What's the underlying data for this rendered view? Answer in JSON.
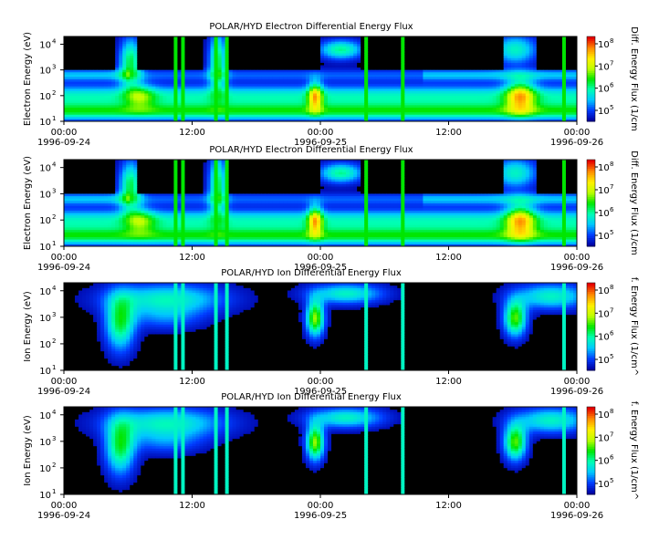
{
  "chart_data": [
    {
      "type": "heatmap",
      "title": "POLAR/HYD  Electron Differential Energy Flux",
      "ylabel": "Electron Energy (eV)",
      "yscale": "log",
      "ylim": [
        10,
        20000
      ],
      "yticks": [
        "10",
        "10",
        "10",
        "10"
      ],
      "ytick_exponents": [
        "1",
        "2",
        "3",
        "4"
      ],
      "xtick_times": [
        "00:00",
        "12:00",
        "00:00",
        "12:00",
        "00:00"
      ],
      "xtick_dates": [
        "1996-09-24",
        "",
        "1996-09-25",
        "",
        "1996-09-26"
      ],
      "colorbar_label": "Diff. Energy Flux (1/cm",
      "colorbar_ticks": [
        "10",
        "10",
        "10",
        "10"
      ],
      "colorbar_exponents": [
        "5",
        "6",
        "7",
        "8"
      ],
      "colorscale": "rainbow"
    },
    {
      "type": "heatmap",
      "title": "POLAR/HYD  Electron Differential Energy Flux",
      "ylabel": "Electron Energy (eV)",
      "yscale": "log",
      "ylim": [
        10,
        20000
      ],
      "yticks": [
        "10",
        "10",
        "10",
        "10"
      ],
      "ytick_exponents": [
        "1",
        "2",
        "3",
        "4"
      ],
      "xtick_times": [
        "00:00",
        "12:00",
        "00:00",
        "12:00",
        "00:00"
      ],
      "xtick_dates": [
        "1996-09-24",
        "",
        "1996-09-25",
        "",
        "1996-09-26"
      ],
      "colorbar_label": "Diff. Energy Flux (1/cm",
      "colorbar_ticks": [
        "10",
        "10",
        "10",
        "10"
      ],
      "colorbar_exponents": [
        "5",
        "6",
        "7",
        "8"
      ],
      "colorscale": "rainbow"
    },
    {
      "type": "heatmap",
      "title": "POLAR/HYD  Ion Differential Energy Flux",
      "ylabel": "Ion Energy (eV)",
      "yscale": "log",
      "ylim": [
        10,
        20000
      ],
      "yticks": [
        "10",
        "10",
        "10",
        "10"
      ],
      "ytick_exponents": [
        "1",
        "2",
        "3",
        "4"
      ],
      "xtick_times": [
        "00:00",
        "12:00",
        "00:00",
        "12:00",
        "00:00"
      ],
      "xtick_dates": [
        "1996-09-24",
        "",
        "1996-09-25",
        "",
        "1996-09-26"
      ],
      "colorbar_label": "f. Energy Flux (1/cm^",
      "colorbar_ticks": [
        "10",
        "10",
        "10",
        "10"
      ],
      "colorbar_exponents": [
        "5",
        "6",
        "7",
        "8"
      ],
      "colorscale": "rainbow"
    },
    {
      "type": "heatmap",
      "title": "POLAR/HYD  Ion Differential Energy Flux",
      "ylabel": "Ion Energy (eV)",
      "yscale": "log",
      "ylim": [
        10,
        20000
      ],
      "yticks": [
        "10",
        "10",
        "10",
        "10"
      ],
      "ytick_exponents": [
        "1",
        "2",
        "3",
        "4"
      ],
      "xtick_times": [
        "00:00",
        "12:00",
        "00:00",
        "12:00",
        "00:00"
      ],
      "xtick_dates": [
        "1996-09-24",
        "",
        "1996-09-25",
        "",
        "1996-09-26"
      ],
      "colorbar_label": "f. Energy Flux (1/cm^",
      "colorbar_ticks": [
        "10",
        "10",
        "10",
        "10"
      ],
      "colorbar_exponents": [
        "5",
        "6",
        "7",
        "8"
      ],
      "colorscale": "rainbow"
    }
  ]
}
